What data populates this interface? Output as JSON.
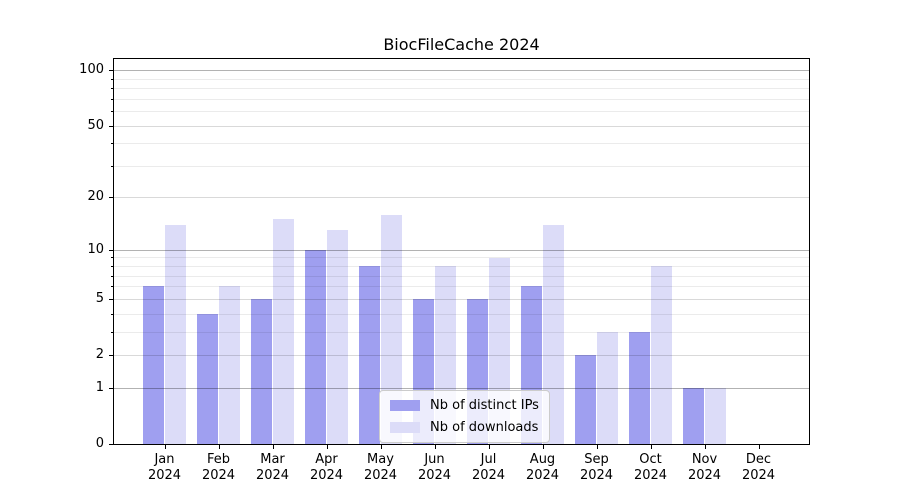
{
  "chart_data": {
    "type": "bar",
    "title": "BiocFileCache 2024",
    "categories": [
      "Jan",
      "Feb",
      "Mar",
      "Apr",
      "May",
      "Jun",
      "Jul",
      "Aug",
      "Sep",
      "Oct",
      "Nov",
      "Dec"
    ],
    "xtick_label_year": "2024",
    "series": [
      {
        "name": "Nb of distinct IPs",
        "color": "#9f9ff0",
        "values": [
          6,
          4,
          5,
          10,
          8,
          5,
          5,
          6,
          2,
          3,
          1,
          0
        ]
      },
      {
        "name": "Nb of downloads",
        "color": "#dcdcf8",
        "values": [
          14,
          6,
          15,
          13,
          16,
          8,
          9,
          14,
          3,
          8,
          1,
          0
        ]
      }
    ],
    "yscale": "log1p",
    "ylim": [
      0,
      117
    ],
    "ytick_values": [
      0,
      1,
      2,
      5,
      10,
      20,
      50,
      100
    ],
    "major_gridlines": [
      1,
      10,
      100
    ],
    "labeled_minor_gridlines": [
      2,
      5,
      20,
      50
    ],
    "minor_gridlines": [
      3,
      4,
      6,
      7,
      8,
      9,
      30,
      40,
      60,
      70,
      80,
      90
    ],
    "grid": true,
    "legend_position": "lower center"
  },
  "colors": {
    "major_grid": "rgba(0,0,0,0.30)",
    "mid_grid": "rgba(0,0,0,0.15)",
    "minor_grid": "rgba(0,0,0,0.08)",
    "spine": "#000000",
    "text": "#000000",
    "legend_border": "#cccccc",
    "legend_bg": "rgba(255,255,255,0.8)"
  }
}
